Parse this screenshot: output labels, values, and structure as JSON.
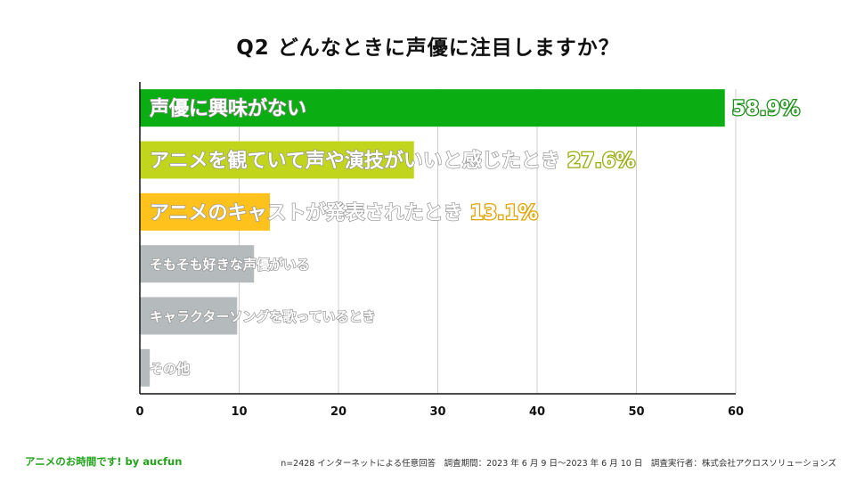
{
  "chart_data": {
    "type": "bar",
    "orientation": "horizontal",
    "title": "Q2  どんなときに声優に注目しますか？",
    "categories": [
      "声優に興味がない",
      "アニメを観ていて声や演技がいいと感じたとき",
      "アニメのキャストが発表されたとき",
      "そもそも好きな声優がいる",
      "キャラクターソングを歌っているとき",
      "その他"
    ],
    "values": [
      58.9,
      27.6,
      13.1,
      11.5,
      9.8,
      1.0
    ],
    "value_labels": [
      "58.9%",
      "27.6%",
      "13.1%",
      "",
      "",
      ""
    ],
    "colors": [
      "#0aad12",
      "#c2d51d",
      "#ffc21c",
      "#b5bbbc",
      "#b5bbbc",
      "#b5bbbc"
    ],
    "xlim": [
      0,
      60
    ],
    "xticks": [
      0,
      10,
      20,
      30,
      40,
      50,
      60
    ],
    "xlabel": "",
    "ylabel": "",
    "grid": true
  },
  "footer": {
    "brand": "アニメのお時間です! by aucfun",
    "note": "n=2428 インターネットによる任意回答　調査期間：2023 年 6 月 9 日～2023 年 6 月 10 日　調査実行者：株式会社アクロスソリューションズ"
  }
}
